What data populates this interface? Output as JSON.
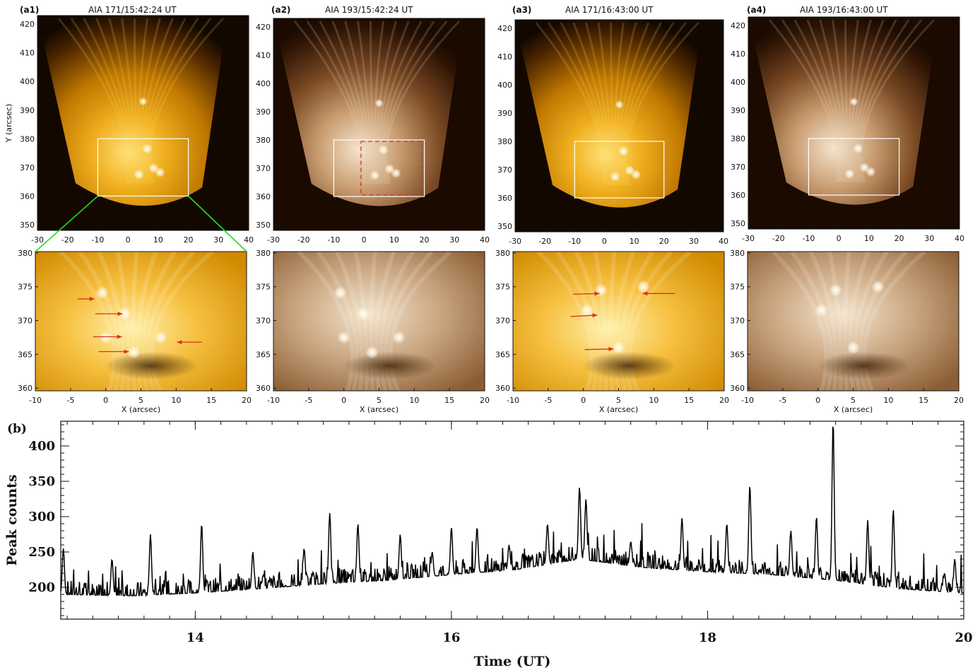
{
  "top_panels": [
    {
      "label": "(a1)",
      "title": "AIA 171/15:42:24 UT",
      "palette": "aia171",
      "box_x": [
        -10,
        20
      ],
      "box_y": [
        360,
        380
      ]
    },
    {
      "label": "(a2)",
      "title": "AIA 193/15:42:24 UT",
      "palette": "aia193",
      "box_x": [
        -10,
        20
      ],
      "box_y": [
        360,
        380
      ],
      "dashed_box_x": [
        -1,
        20
      ],
      "dashed_box_y": [
        360,
        380
      ]
    },
    {
      "label": "(a3)",
      "title": "AIA 171/16:43:00 UT",
      "palette": "aia171",
      "box_x": [
        -10,
        20
      ],
      "box_y": [
        360,
        380
      ]
    },
    {
      "label": "(a4)",
      "title": "AIA 193/16:43:00 UT",
      "palette": "aia193",
      "box_x": [
        -10,
        20
      ],
      "box_y": [
        360,
        380
      ]
    }
  ],
  "top_axes": {
    "x_ticks": [
      "-30",
      "-20",
      "-10",
      "0",
      "10",
      "20",
      "30",
      "40"
    ],
    "y_ticks": [
      "420",
      "410",
      "400",
      "390",
      "380",
      "370",
      "360",
      "350"
    ],
    "ylabel": "Y (arcsec)"
  },
  "zoom_axes": {
    "x_ticks": [
      "-10",
      "-5",
      "0",
      "5",
      "10",
      "15",
      "20"
    ],
    "y_ticks": [
      "380",
      "375",
      "370",
      "365",
      "360"
    ],
    "xlabel": "X (arcsec)"
  },
  "colors": {
    "aia171_dark": "#120800",
    "aia171_mid": "#b06c00",
    "aia171_bright": "#ffd860",
    "aia193_dark": "#1a0a00",
    "aia193_mid": "#8a5a30",
    "aia193_bright": "#f2dcc0",
    "box": "#ffffff",
    "connector": "#22dd22",
    "arrow": "#e03020",
    "dashed_box": "#e03020"
  },
  "panel_b": {
    "label": "(b)",
    "xlabel": "Time (UT)",
    "ylabel": "Peak counts"
  },
  "chart_data": {
    "type": "line",
    "x_range": [
      12.95,
      20.0
    ],
    "ylim": [
      155,
      435
    ],
    "x_ticks": [
      14,
      16,
      18,
      20
    ],
    "y_ticks": [
      200,
      250,
      300,
      350,
      400
    ],
    "grid": false,
    "peaks": [
      {
        "x": 12.97,
        "y": 255
      },
      {
        "x": 13.05,
        "y": 170
      },
      {
        "x": 13.35,
        "y": 240
      },
      {
        "x": 13.65,
        "y": 275
      },
      {
        "x": 14.05,
        "y": 290
      },
      {
        "x": 14.45,
        "y": 250
      },
      {
        "x": 14.85,
        "y": 255
      },
      {
        "x": 15.05,
        "y": 305
      },
      {
        "x": 15.27,
        "y": 290
      },
      {
        "x": 15.6,
        "y": 275
      },
      {
        "x": 15.85,
        "y": 250
      },
      {
        "x": 16.0,
        "y": 285
      },
      {
        "x": 16.2,
        "y": 285
      },
      {
        "x": 16.45,
        "y": 260
      },
      {
        "x": 16.75,
        "y": 290
      },
      {
        "x": 17.0,
        "y": 342
      },
      {
        "x": 17.05,
        "y": 325
      },
      {
        "x": 17.4,
        "y": 265
      },
      {
        "x": 17.8,
        "y": 298
      },
      {
        "x": 18.15,
        "y": 290
      },
      {
        "x": 18.33,
        "y": 345
      },
      {
        "x": 18.65,
        "y": 280
      },
      {
        "x": 18.85,
        "y": 300
      },
      {
        "x": 18.98,
        "y": 435
      },
      {
        "x": 19.25,
        "y": 295
      },
      {
        "x": 19.45,
        "y": 310
      },
      {
        "x": 19.85,
        "y": 220
      },
      {
        "x": 19.93,
        "y": 240
      }
    ],
    "baseline": [
      {
        "x": 12.95,
        "y": 190
      },
      {
        "x": 13.5,
        "y": 188
      },
      {
        "x": 14.0,
        "y": 192
      },
      {
        "x": 14.5,
        "y": 198
      },
      {
        "x": 15.0,
        "y": 205
      },
      {
        "x": 15.5,
        "y": 210
      },
      {
        "x": 16.0,
        "y": 218
      },
      {
        "x": 16.5,
        "y": 225
      },
      {
        "x": 17.0,
        "y": 240
      },
      {
        "x": 17.5,
        "y": 228
      },
      {
        "x": 18.0,
        "y": 222
      },
      {
        "x": 18.5,
        "y": 218
      },
      {
        "x": 19.0,
        "y": 210
      },
      {
        "x": 19.5,
        "y": 198
      },
      {
        "x": 20.0,
        "y": 192
      }
    ]
  }
}
